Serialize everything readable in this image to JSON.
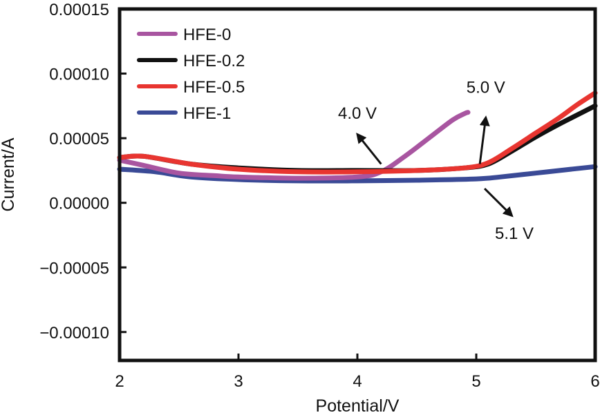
{
  "chart_data": {
    "type": "line",
    "title": "",
    "xlabel": "Potential/V",
    "ylabel": "Current/A",
    "xlim": [
      2,
      6
    ],
    "ylim": [
      -0.000122,
      0.00015
    ],
    "x_ticks": [
      2,
      3,
      4,
      5,
      6
    ],
    "x_tick_labels": [
      "2",
      "3",
      "4",
      "5",
      "6"
    ],
    "y_ticks": [
      0.00015,
      0.0001,
      5e-05,
      0,
      -5e-05,
      -0.0001
    ],
    "y_tick_labels": [
      "0.00015",
      "0.00010",
      "0.00005",
      "0.00000",
      "−0.00005",
      "−0.00010"
    ],
    "grid": false,
    "legend_position": "top-left",
    "series": [
      {
        "name": "HFE-0",
        "color": "#a855a0",
        "x": [
          2.0,
          2.2,
          2.5,
          2.8,
          3.0,
          3.5,
          4.0,
          4.2,
          4.4,
          4.6,
          4.8,
          4.9,
          4.93
        ],
        "y": [
          3.3e-05,
          2.9e-05,
          2.3e-05,
          2.1e-05,
          2e-05,
          1.9e-05,
          2e-05,
          2.4e-05,
          3.6e-05,
          5e-05,
          6.4e-05,
          6.9e-05,
          7e-05
        ]
      },
      {
        "name": "HFE-0.2",
        "color": "#111111",
        "x": [
          2.0,
          2.2,
          2.6,
          3.0,
          3.5,
          4.0,
          4.5,
          4.9,
          5.1,
          5.3,
          5.5,
          5.7,
          5.85,
          6.0
        ],
        "y": [
          3.5e-05,
          3.6e-05,
          3e-05,
          2.7e-05,
          2.5e-05,
          2.5e-05,
          2.5e-05,
          2.7e-05,
          3e-05,
          4e-05,
          5.1e-05,
          6.1e-05,
          6.8e-05,
          7.5e-05
        ]
      },
      {
        "name": "HFE-0.5",
        "color": "#e83530",
        "x": [
          2.0,
          2.2,
          2.6,
          3.0,
          3.5,
          4.0,
          4.5,
          4.9,
          5.1,
          5.3,
          5.5,
          5.7,
          5.85,
          6.0
        ],
        "y": [
          3.5e-05,
          3.6e-05,
          3e-05,
          2.6e-05,
          2.4e-05,
          2.4e-05,
          2.5e-05,
          2.7e-05,
          3.1e-05,
          4.2e-05,
          5.4e-05,
          6.6e-05,
          7.6e-05,
          8.5e-05
        ]
      },
      {
        "name": "HFE-1",
        "color": "#3a4a96",
        "x": [
          2.0,
          2.3,
          2.6,
          3.0,
          3.5,
          4.0,
          4.5,
          5.0,
          5.2,
          5.5,
          5.8,
          6.0
        ],
        "y": [
          2.6e-05,
          2.4e-05,
          2e-05,
          1.8e-05,
          1.7e-05,
          1.7e-05,
          1.75e-05,
          1.85e-05,
          2e-05,
          2.3e-05,
          2.6e-05,
          2.8e-05
        ]
      }
    ],
    "annotations": [
      {
        "label": "4.0 V",
        "text_at": [
          4.0,
          6.5e-05
        ],
        "arrow_from": [
          4.2,
          3e-05
        ],
        "arrow_to": [
          4.0,
          5.3e-05
        ]
      },
      {
        "label": "5.0 V",
        "text_at": [
          5.08,
          8.5e-05
        ],
        "arrow_from": [
          5.03,
          3e-05
        ],
        "arrow_to": [
          5.08,
          6.6e-05
        ]
      },
      {
        "label": "5.1 V",
        "text_at": [
          5.32,
          -2.8e-05
        ],
        "arrow_from": [
          5.07,
          1.1e-05
        ],
        "arrow_to": [
          5.3,
          -1e-05
        ]
      }
    ]
  }
}
